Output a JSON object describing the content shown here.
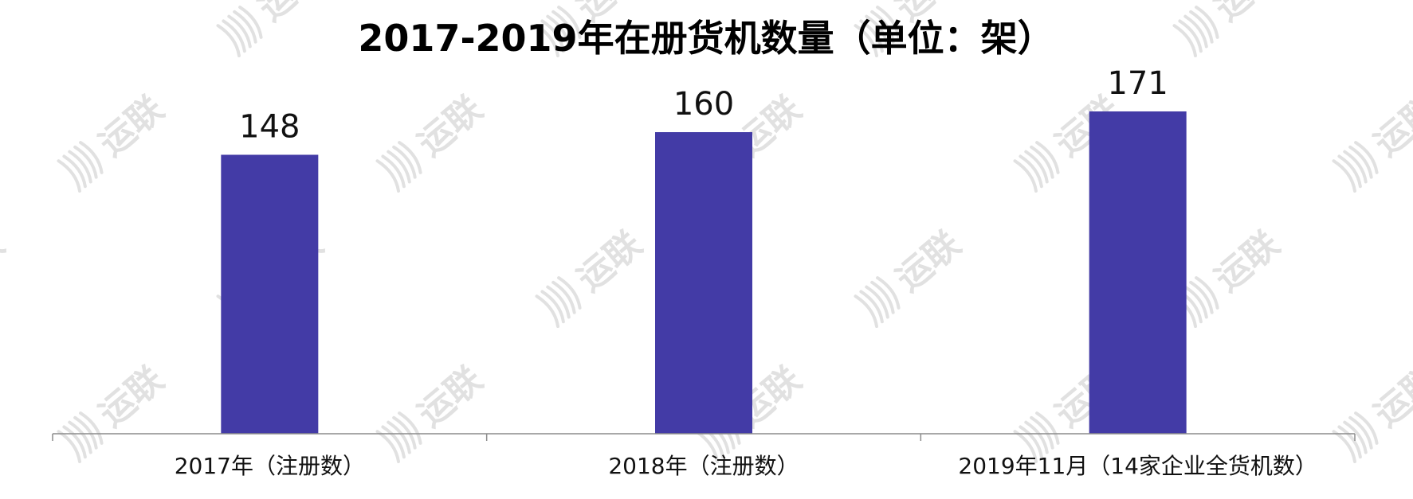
{
  "watermark": {
    "text": "运联",
    "color": "#d7d7d7",
    "icon": "yunlian-logo-icon"
  },
  "chart_data": {
    "type": "bar",
    "title": "2017-2019年在册货机数量（单位：架）",
    "categories": [
      "2017年（注册数）",
      "2018年（注册数）",
      "2019年11月（14家企业全货机数）"
    ],
    "values": [
      148,
      160,
      171
    ],
    "data_labels": [
      "148",
      "160",
      "171"
    ],
    "xlabel": "",
    "ylabel": "",
    "ylim": [
      0,
      190
    ],
    "grid": false,
    "legend": "none",
    "bar_color": "#433ba6",
    "axis_color": "#8c8c8c"
  }
}
